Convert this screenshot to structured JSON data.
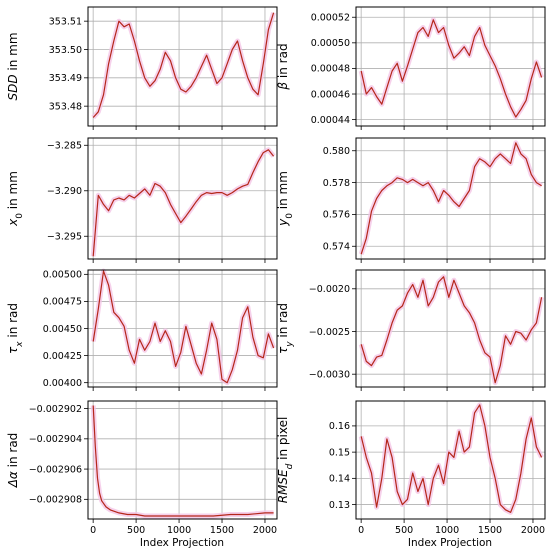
{
  "figure": {
    "xlabel": "Index Projection",
    "x_ticks": [
      "0",
      "500",
      "1000",
      "1500",
      "2000"
    ]
  },
  "chart_data": [
    {
      "type": "line",
      "ylabel": "SDD in mm",
      "ylabel_parts": [
        {
          "text": "SDD",
          "italic": true
        },
        {
          "text": " in mm",
          "italic": false
        }
      ],
      "xlim": [
        -60,
        2140
      ],
      "ylim": [
        353.473,
        353.515
      ],
      "yticks": [
        353.48,
        353.49,
        353.5,
        353.51
      ],
      "ytick_labels": [
        "353.48",
        "353.49",
        "353.50",
        "353.51"
      ],
      "grid": true,
      "x": [
        0,
        60,
        120,
        180,
        240,
        300,
        360,
        420,
        480,
        540,
        600,
        660,
        720,
        780,
        840,
        900,
        960,
        1020,
        1080,
        1140,
        1200,
        1260,
        1320,
        1380,
        1440,
        1500,
        1560,
        1620,
        1680,
        1740,
        1800,
        1860,
        1920,
        1980,
        2040,
        2100
      ],
      "y": [
        353.476,
        353.478,
        353.484,
        353.495,
        353.503,
        353.51,
        353.508,
        353.509,
        353.503,
        353.496,
        353.49,
        353.487,
        353.489,
        353.493,
        353.499,
        353.496,
        353.49,
        353.486,
        353.485,
        353.487,
        353.49,
        353.494,
        353.498,
        353.493,
        353.488,
        353.49,
        353.495,
        353.5,
        353.503,
        353.496,
        353.49,
        353.486,
        353.484,
        353.495,
        353.507,
        353.513
      ]
    },
    {
      "type": "line",
      "ylabel": "β in rad",
      "ylabel_parts": [
        {
          "text": "β",
          "italic": true
        },
        {
          "text": " in rad",
          "italic": false
        }
      ],
      "xlim": [
        -60,
        2140
      ],
      "ylim": [
        0.000435,
        0.000528
      ],
      "yticks": [
        0.00044,
        0.00046,
        0.00048,
        0.0005,
        0.00052
      ],
      "ytick_labels": [
        "0.00044",
        "0.00046",
        "0.00048",
        "0.00050",
        "0.00052"
      ],
      "grid": true,
      "x": [
        0,
        60,
        120,
        180,
        240,
        300,
        360,
        420,
        480,
        540,
        600,
        660,
        720,
        780,
        840,
        900,
        960,
        1020,
        1080,
        1140,
        1200,
        1260,
        1320,
        1380,
        1440,
        1500,
        1560,
        1620,
        1680,
        1740,
        1800,
        1860,
        1920,
        1980,
        2040,
        2100
      ],
      "y": [
        0.000478,
        0.00046,
        0.000465,
        0.000458,
        0.000452,
        0.000465,
        0.000478,
        0.000484,
        0.00047,
        0.000482,
        0.000495,
        0.000508,
        0.000512,
        0.000505,
        0.000518,
        0.000508,
        0.000512,
        0.000498,
        0.000488,
        0.000492,
        0.000497,
        0.00049,
        0.000505,
        0.000512,
        0.000498,
        0.00049,
        0.000482,
        0.000472,
        0.00046,
        0.00045,
        0.000442,
        0.000448,
        0.000455,
        0.000472,
        0.000485,
        0.000473
      ]
    },
    {
      "type": "line",
      "ylabel": "x0 in mm",
      "ylabel_parts": [
        {
          "text": "x",
          "italic": true
        },
        {
          "text": "0",
          "italic": false,
          "sub": true
        },
        {
          "text": " in mm",
          "italic": false
        }
      ],
      "xlim": [
        -60,
        2140
      ],
      "ylim": [
        -3.2975,
        -3.2842
      ],
      "yticks": [
        -3.295,
        -3.29,
        -3.285
      ],
      "ytick_labels": [
        "−3.295",
        "−3.290",
        "−3.285"
      ],
      "grid": true,
      "x": [
        0,
        60,
        120,
        180,
        240,
        300,
        360,
        420,
        480,
        540,
        600,
        660,
        720,
        780,
        840,
        900,
        960,
        1020,
        1080,
        1140,
        1200,
        1260,
        1320,
        1380,
        1440,
        1500,
        1560,
        1620,
        1680,
        1740,
        1800,
        1860,
        1920,
        1980,
        2040,
        2100
      ],
      "y": [
        -3.2972,
        -3.2905,
        -3.2915,
        -3.2922,
        -3.291,
        -3.2908,
        -3.291,
        -3.2905,
        -3.2908,
        -3.2903,
        -3.2898,
        -3.2905,
        -3.2892,
        -3.2895,
        -3.2902,
        -3.2915,
        -3.2925,
        -3.2935,
        -3.2928,
        -3.292,
        -3.2912,
        -3.2905,
        -3.2902,
        -3.2903,
        -3.2902,
        -3.2902,
        -3.2905,
        -3.2902,
        -3.2898,
        -3.2895,
        -3.2893,
        -3.288,
        -3.2868,
        -3.2858,
        -3.2855,
        -3.2862
      ]
    },
    {
      "type": "line",
      "ylabel": "y0 in mm",
      "ylabel_parts": [
        {
          "text": "y",
          "italic": true
        },
        {
          "text": "0",
          "italic": false,
          "sub": true
        },
        {
          "text": " in mm",
          "italic": false
        }
      ],
      "xlim": [
        -60,
        2140
      ],
      "ylim": [
        0.5732,
        0.5808
      ],
      "yticks": [
        0.574,
        0.576,
        0.578,
        0.58
      ],
      "ytick_labels": [
        "0.574",
        "0.576",
        "0.578",
        "0.580"
      ],
      "grid": true,
      "x": [
        0,
        60,
        120,
        180,
        240,
        300,
        360,
        420,
        480,
        540,
        600,
        660,
        720,
        780,
        840,
        900,
        960,
        1020,
        1080,
        1140,
        1200,
        1260,
        1320,
        1380,
        1440,
        1500,
        1560,
        1620,
        1680,
        1740,
        1800,
        1860,
        1920,
        1980,
        2040,
        2100
      ],
      "y": [
        0.5735,
        0.5745,
        0.5762,
        0.577,
        0.5775,
        0.5778,
        0.578,
        0.5783,
        0.5782,
        0.578,
        0.5782,
        0.578,
        0.5778,
        0.578,
        0.5775,
        0.5768,
        0.5775,
        0.5772,
        0.5768,
        0.5765,
        0.577,
        0.5775,
        0.579,
        0.5795,
        0.5793,
        0.579,
        0.5795,
        0.5798,
        0.5795,
        0.5792,
        0.5805,
        0.5798,
        0.5795,
        0.5785,
        0.578,
        0.5778
      ]
    },
    {
      "type": "line",
      "ylabel": "τx in rad",
      "ylabel_parts": [
        {
          "text": "τ",
          "italic": true
        },
        {
          "text": "x",
          "italic": true,
          "sub": true
        },
        {
          "text": " in rad",
          "italic": false
        }
      ],
      "xlim": [
        -60,
        2140
      ],
      "ylim": [
        0.00396,
        0.00504
      ],
      "yticks": [
        0.004,
        0.00425,
        0.0045,
        0.00475,
        0.005
      ],
      "ytick_labels": [
        "0.00400",
        "0.00425",
        "0.00450",
        "0.00475",
        "0.00500"
      ],
      "grid": true,
      "x": [
        0,
        60,
        120,
        180,
        240,
        300,
        360,
        420,
        480,
        540,
        600,
        660,
        720,
        780,
        840,
        900,
        960,
        1020,
        1080,
        1140,
        1200,
        1260,
        1320,
        1380,
        1440,
        1500,
        1560,
        1620,
        1680,
        1740,
        1800,
        1860,
        1920,
        1980,
        2040,
        2100
      ],
      "y": [
        0.00438,
        0.00468,
        0.00503,
        0.0049,
        0.00465,
        0.0046,
        0.00452,
        0.0043,
        0.00418,
        0.0044,
        0.0043,
        0.00438,
        0.00455,
        0.00438,
        0.00448,
        0.00438,
        0.00415,
        0.00428,
        0.00452,
        0.00435,
        0.00418,
        0.00408,
        0.0043,
        0.00455,
        0.0044,
        0.00403,
        0.004,
        0.00412,
        0.0043,
        0.0046,
        0.0047,
        0.00442,
        0.00425,
        0.00423,
        0.00445,
        0.00432
      ]
    },
    {
      "type": "line",
      "ylabel": "τy in rad",
      "ylabel_parts": [
        {
          "text": "τ",
          "italic": true
        },
        {
          "text": "y",
          "italic": true,
          "sub": true
        },
        {
          "text": " in rad",
          "italic": false
        }
      ],
      "xlim": [
        -60,
        2140
      ],
      "ylim": [
        -0.00315,
        -0.00178
      ],
      "yticks": [
        -0.003,
        -0.0025,
        -0.002
      ],
      "ytick_labels": [
        "−0.0030",
        "−0.0025",
        "−0.0020"
      ],
      "grid": true,
      "x": [
        0,
        60,
        120,
        180,
        240,
        300,
        360,
        420,
        480,
        540,
        600,
        660,
        720,
        780,
        840,
        900,
        960,
        1020,
        1080,
        1140,
        1200,
        1260,
        1320,
        1380,
        1440,
        1500,
        1560,
        1620,
        1680,
        1740,
        1800,
        1860,
        1920,
        1980,
        2040,
        2100
      ],
      "y": [
        -0.00265,
        -0.00285,
        -0.0029,
        -0.0028,
        -0.00278,
        -0.0026,
        -0.0024,
        -0.00225,
        -0.0022,
        -0.00205,
        -0.00195,
        -0.0021,
        -0.0019,
        -0.0022,
        -0.0021,
        -0.00192,
        -0.00186,
        -0.0021,
        -0.0019,
        -0.00205,
        -0.0022,
        -0.00228,
        -0.0024,
        -0.0026,
        -0.00275,
        -0.0028,
        -0.0031,
        -0.0029,
        -0.00255,
        -0.00265,
        -0.0025,
        -0.00252,
        -0.0026,
        -0.00248,
        -0.0024,
        -0.0021
      ]
    },
    {
      "type": "line",
      "ylabel": "Δα in rad",
      "ylabel_parts": [
        {
          "text": "Δα",
          "italic": true
        },
        {
          "text": " in rad",
          "italic": false
        }
      ],
      "xlim": [
        -60,
        2140
      ],
      "ylim": [
        -0.0029093,
        -0.0029015
      ],
      "yticks": [
        -0.002902,
        -0.002904,
        -0.002906,
        -0.002908
      ],
      "ytick_labels": [
        "−0.002902",
        "−0.002904",
        "−0.002906",
        "−0.002908"
      ],
      "grid": true,
      "x": [
        0,
        25,
        50,
        75,
        100,
        150,
        200,
        300,
        400,
        500,
        600,
        800,
        1000,
        1200,
        1400,
        1600,
        1800,
        2000,
        2100
      ],
      "y": [
        -0.0029018,
        -0.0029045,
        -0.0029066,
        -0.0029076,
        -0.0029081,
        -0.0029085,
        -0.0029087,
        -0.0029089,
        -0.002909,
        -0.002909,
        -0.0029091,
        -0.0029091,
        -0.0029091,
        -0.0029091,
        -0.0029091,
        -0.002909,
        -0.002909,
        -0.0029089,
        -0.0029089
      ]
    },
    {
      "type": "line",
      "ylabel": "RMSEd in pixel",
      "ylabel_parts": [
        {
          "text": "RMSE",
          "italic": true
        },
        {
          "text": "d",
          "italic": true,
          "sub": true
        },
        {
          "text": " in pixel",
          "italic": false
        }
      ],
      "xlim": [
        -60,
        2140
      ],
      "ylim": [
        0.1245,
        0.1695
      ],
      "yticks": [
        0.13,
        0.14,
        0.15,
        0.16
      ],
      "ytick_labels": [
        "0.13",
        "0.14",
        "0.15",
        "0.16"
      ],
      "grid": true,
      "x": [
        0,
        60,
        120,
        180,
        240,
        300,
        360,
        420,
        480,
        540,
        600,
        660,
        720,
        780,
        840,
        900,
        960,
        1020,
        1080,
        1140,
        1200,
        1260,
        1320,
        1380,
        1440,
        1500,
        1560,
        1620,
        1680,
        1740,
        1800,
        1860,
        1920,
        1980,
        2040,
        2100
      ],
      "y": [
        0.156,
        0.148,
        0.142,
        0.129,
        0.14,
        0.155,
        0.148,
        0.135,
        0.13,
        0.132,
        0.142,
        0.135,
        0.14,
        0.13,
        0.14,
        0.145,
        0.138,
        0.15,
        0.148,
        0.158,
        0.15,
        0.152,
        0.165,
        0.168,
        0.16,
        0.148,
        0.14,
        0.13,
        0.128,
        0.127,
        0.132,
        0.142,
        0.155,
        0.163,
        0.152,
        0.148
      ]
    }
  ]
}
